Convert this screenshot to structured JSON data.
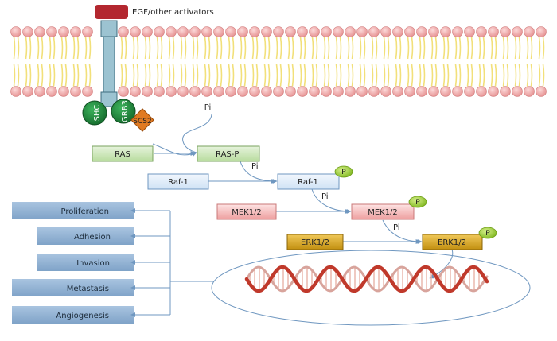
{
  "receptor": {
    "ligand_label": "EGF/other activators"
  },
  "adaptors": {
    "shc": "SHC",
    "grb": "GRB3",
    "scs": "SCS2"
  },
  "phosphate": {
    "pi": "Pi",
    "p": "P"
  },
  "pathway": {
    "ras": "RAS",
    "ras_pi": "RAS-Pi",
    "raf1": "Raf-1",
    "raf1_active": "Raf-1",
    "mek": "MEK1/2",
    "mek_active": "MEK1/2",
    "erk": "ERK1/2",
    "erk_active": "ERK1/2"
  },
  "outcomes": {
    "items": [
      "Proliferation",
      "Adhesion",
      "Invasion",
      "Metastasis",
      "Angiogenesis"
    ]
  },
  "colors": {
    "background": "#ffffff",
    "phospholipid_head": "#f4a9a9",
    "phospholipid_tail": "#f2e07a",
    "receptor": "#9cc3d1",
    "ligand": "#b3272f",
    "adaptor_green": "#1e8a3c",
    "scs_orange": "#e07a22",
    "ras_green": "#c7e3b2",
    "raf_blue": "#dbe9f6",
    "mek_red": "#f4b6b6",
    "erk_gold": "#d7a51e",
    "phospho_green": "#9acd32",
    "outcome_box": "#8eb0d3",
    "dna_red": "#c0392b"
  }
}
